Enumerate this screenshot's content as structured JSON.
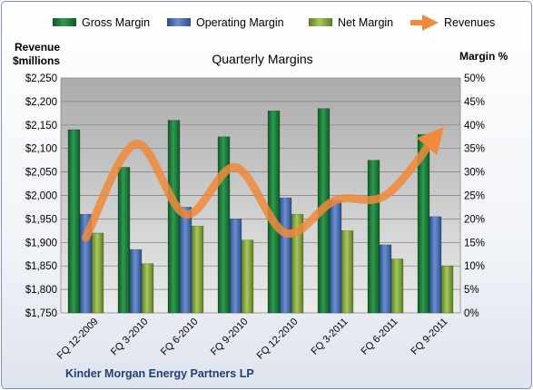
{
  "chart_data": {
    "type": "bar",
    "title": "Quarterly Margins",
    "ylabel_left": [
      "Revenue",
      "$millions"
    ],
    "ylabel_right": "Margin %",
    "footer": "Kinder Morgan Energy Partners LP",
    "categories": [
      "FQ 12-2009",
      "FQ 3-2010",
      "FQ 6-2010",
      "FQ 9-2010",
      "FQ 12-2010",
      "FQ 3-2011",
      "FQ 6-2011",
      "FQ 9-2011"
    ],
    "left_axis": {
      "min": 1750,
      "max": 2250,
      "ticks": [
        "$1,750",
        "$1,800",
        "$1,850",
        "$1,900",
        "$1,950",
        "$2,000",
        "$2,050",
        "$2,100",
        "$2,150",
        "$2,200",
        "$2,250"
      ]
    },
    "right_axis": {
      "min": 0,
      "max": 50,
      "ticks": [
        "0%",
        "5%",
        "10%",
        "15%",
        "20%",
        "25%",
        "30%",
        "35%",
        "40%",
        "45%",
        "50%"
      ]
    },
    "grid": true,
    "legend_position": "top",
    "series": [
      {
        "name": "Gross Margin",
        "type": "bar",
        "axis": "right",
        "color": "#1e7a3a",
        "values": [
          39,
          31,
          41,
          37.5,
          43,
          43.5,
          32.5,
          38
        ]
      },
      {
        "name": "Operating Margin",
        "type": "bar",
        "axis": "right",
        "color": "#4a6fb0",
        "values": [
          21,
          13.5,
          22.5,
          20,
          24.5,
          24,
          14.5,
          20.5
        ]
      },
      {
        "name": "Net Margin",
        "type": "bar",
        "axis": "right",
        "color": "#8aae44",
        "values": [
          17,
          10.5,
          18.5,
          15.5,
          21,
          17.5,
          11.5,
          10
        ]
      },
      {
        "name": "Revenues",
        "type": "line",
        "axis": "left",
        "color": "#f08a3c",
        "values": [
          1910,
          2110,
          1960,
          2060,
          1920,
          1990,
          2000,
          2125
        ]
      }
    ]
  }
}
